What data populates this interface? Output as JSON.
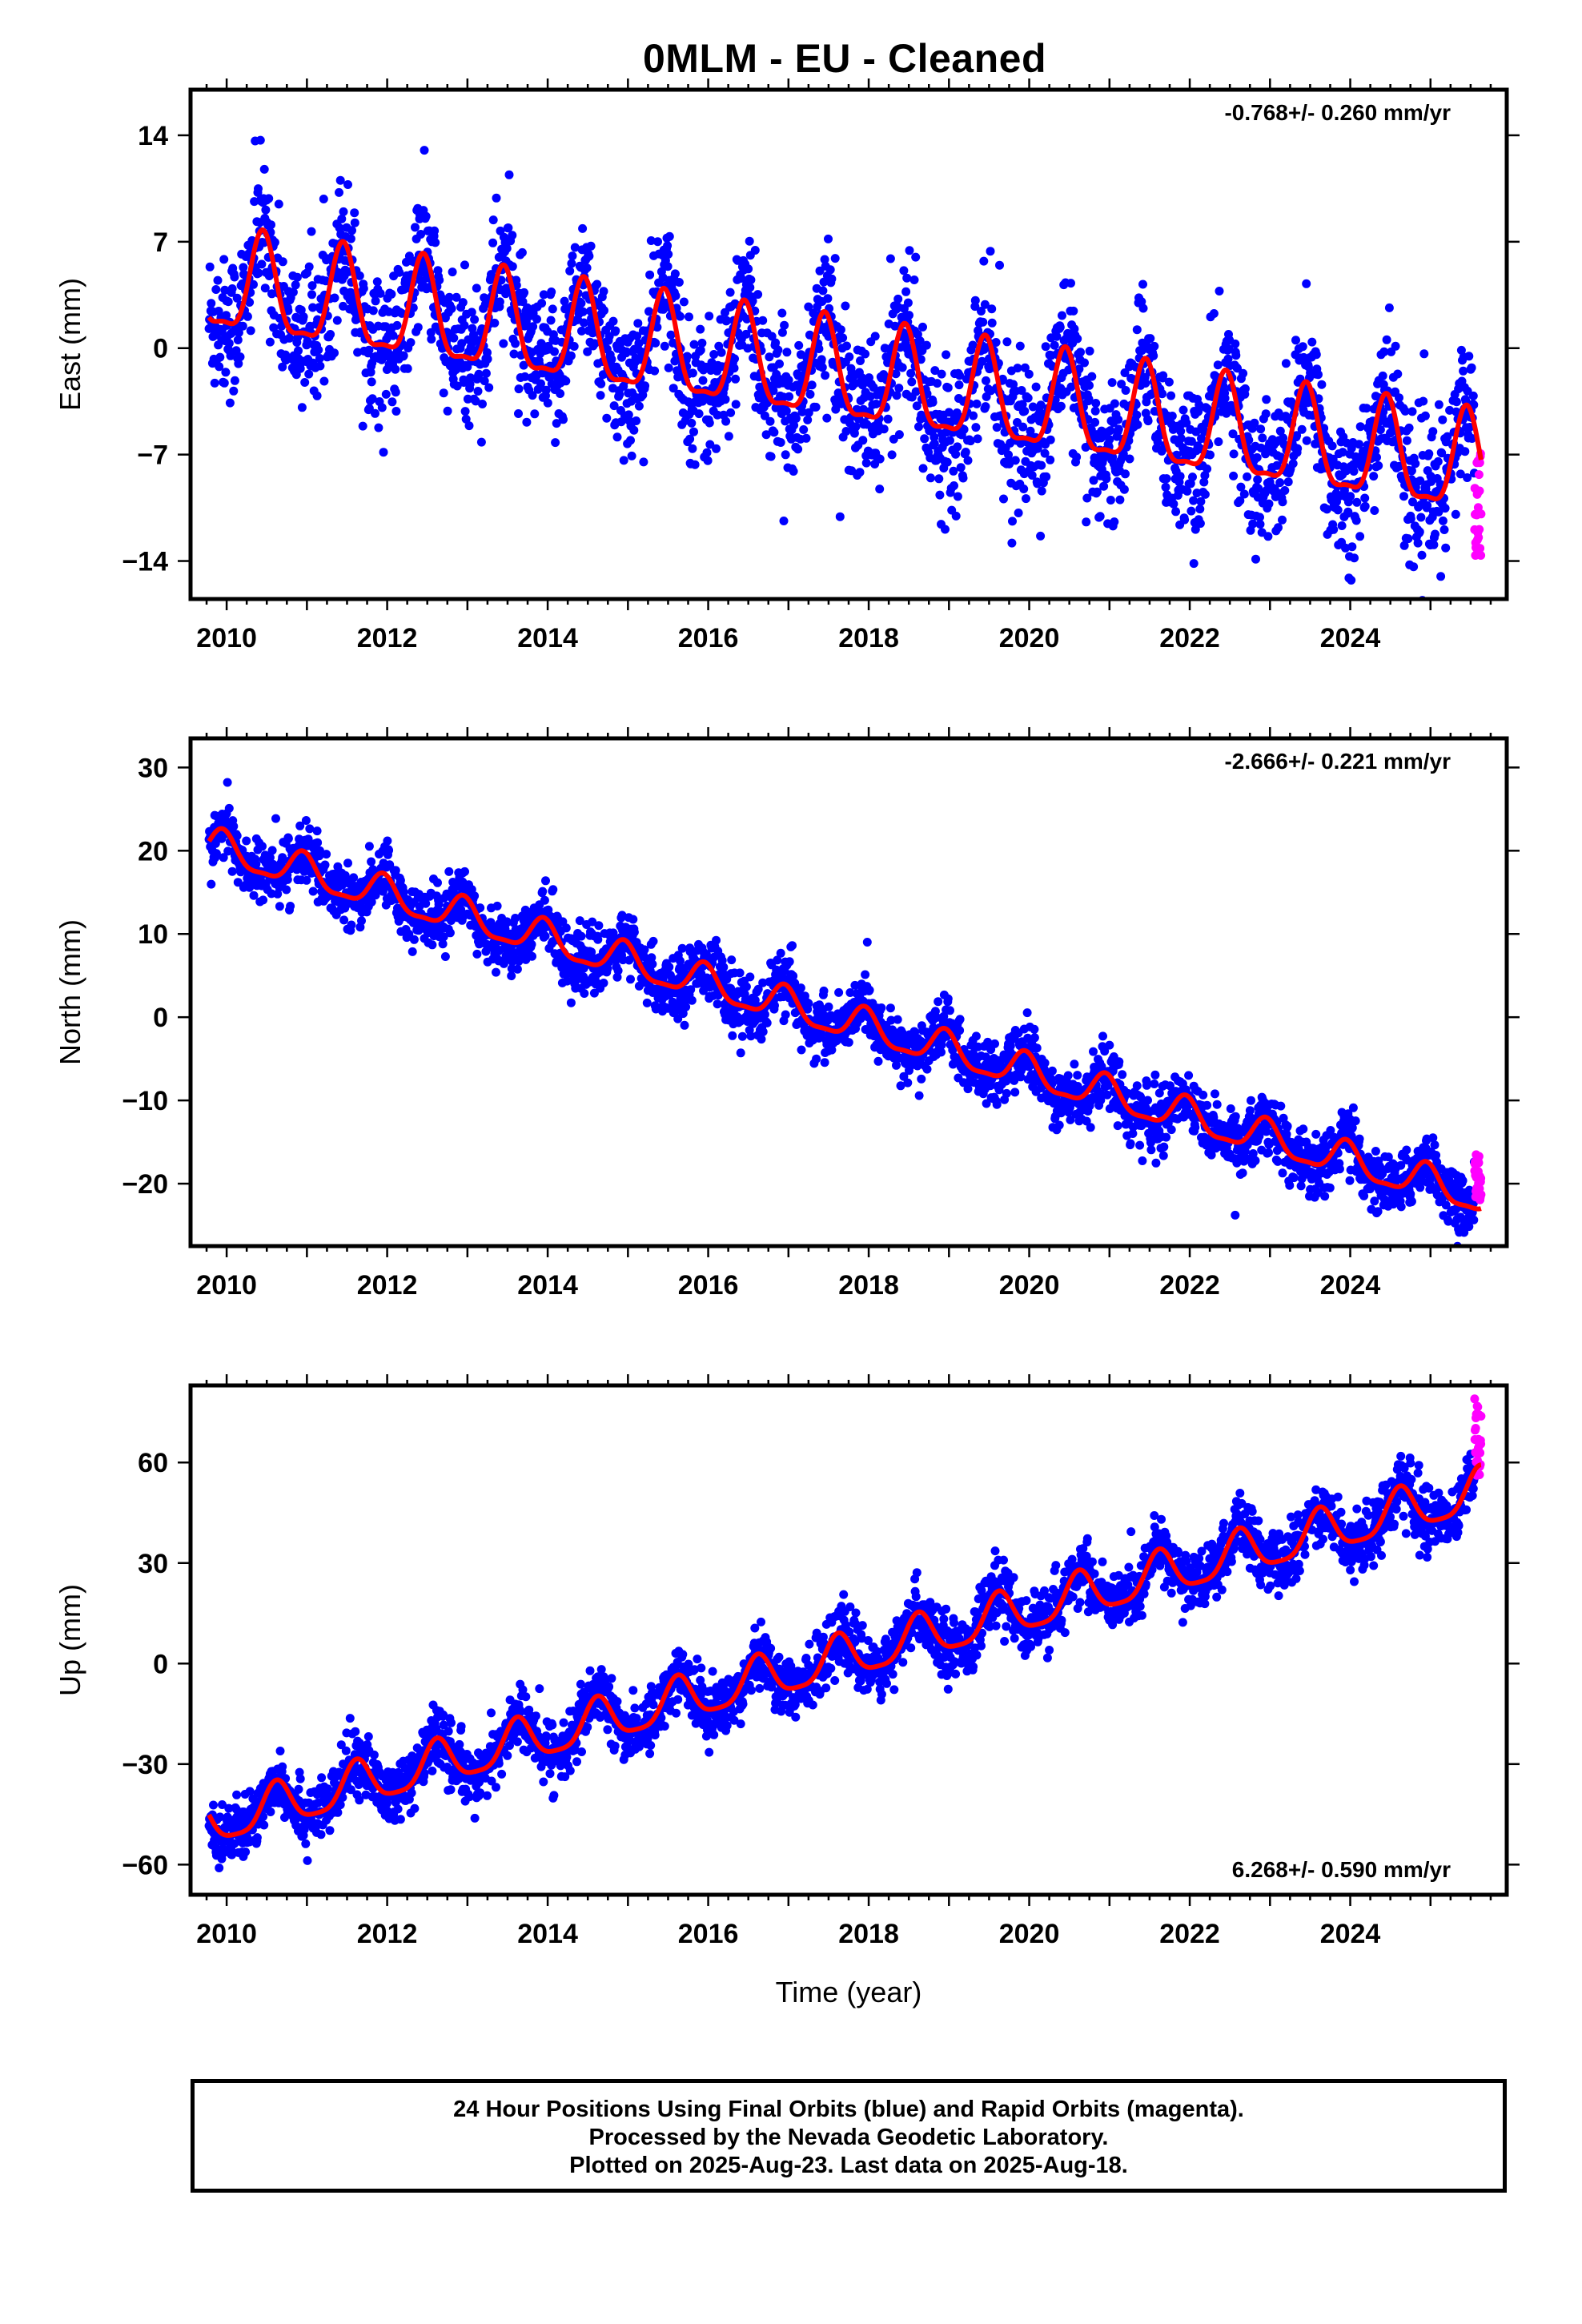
{
  "title": "0MLM  - EU - Cleaned",
  "colors": {
    "final": "#0000ff",
    "rapid": "#ff00ff",
    "fit": "#ff0000",
    "frame": "#000000"
  },
  "footer": {
    "line1": "24 Hour Positions Using Final Orbits (blue) and Rapid Orbits (magenta).",
    "line2": "Processed by the Nevada Geodetic Laboratory.",
    "line3": "Plotted on 2025-Aug-23. Last data on 2025-Aug-18."
  },
  "chart_data": [
    {
      "type": "scatter",
      "ylabel": "East (mm)",
      "rate_label": "-0.768+/- 0.260 mm/yr",
      "xlim": [
        2009.55,
        2025.95
      ],
      "ylim": [
        -16.5,
        17.0
      ],
      "xticks": [
        2010,
        2012,
        2014,
        2016,
        2018,
        2020,
        2022,
        2024
      ],
      "yticks": [
        14,
        7,
        0,
        -7,
        -14
      ],
      "rate_mm_per_yr": -0.768,
      "fit": {
        "t0": 2009.78,
        "intercept": 4.1,
        "slope": -0.768,
        "annual_amp": 3.2,
        "annual_phase_peak": 0.45,
        "semiannual_amp": 1.0,
        "semiannual_phase_peak": 0.45
      },
      "noise_mm": 2.3,
      "rapid": {
        "start": 2025.55,
        "end": 2025.63,
        "values_range": [
          -14.5,
          -6.5
        ]
      }
    },
    {
      "type": "scatter",
      "ylabel": "North (mm)",
      "rate_label": "-2.666+/- 0.221 mm/yr",
      "xlim": [
        2009.55,
        2025.95
      ],
      "ylim": [
        -27.5,
        33.5
      ],
      "xticks": [
        2010,
        2012,
        2014,
        2016,
        2018,
        2020,
        2022,
        2024
      ],
      "yticks": [
        30,
        20,
        10,
        0,
        -10,
        -20
      ],
      "rate_mm_per_yr": -2.666,
      "fit": {
        "t0": 2009.78,
        "intercept": 20.5,
        "slope": -2.666,
        "annual_amp": 2.0,
        "annual_phase_peak": 0.95,
        "semiannual_amp": 0.6,
        "semiannual_phase_peak": 0.95
      },
      "noise_mm": 1.8,
      "rapid": {
        "start": 2025.55,
        "end": 2025.63,
        "values_range": [
          -22.0,
          -16.5
        ]
      }
    },
    {
      "type": "scatter",
      "ylabel": "Up (mm)",
      "xlabel": "Time (year)",
      "rate_label": "6.268+/- 0.590 mm/yr",
      "xlim": [
        2009.55,
        2025.95
      ],
      "ylim": [
        -69,
        83
      ],
      "xticks": [
        2010,
        2012,
        2014,
        2016,
        2018,
        2020,
        2022,
        2024
      ],
      "yticks": [
        60,
        30,
        0,
        -30,
        -60
      ],
      "rate_mm_per_yr": 6.268,
      "fit": {
        "t0": 2009.78,
        "intercept": -48.0,
        "slope": 6.268,
        "annual_amp": 6.5,
        "annual_phase_peak": 0.62,
        "semiannual_amp": 1.5,
        "semiannual_phase_peak": 0.62
      },
      "noise_mm": 4.5,
      "rapid": {
        "start": 2025.55,
        "end": 2025.63,
        "values_range": [
          56.0,
          80.0
        ]
      }
    }
  ]
}
